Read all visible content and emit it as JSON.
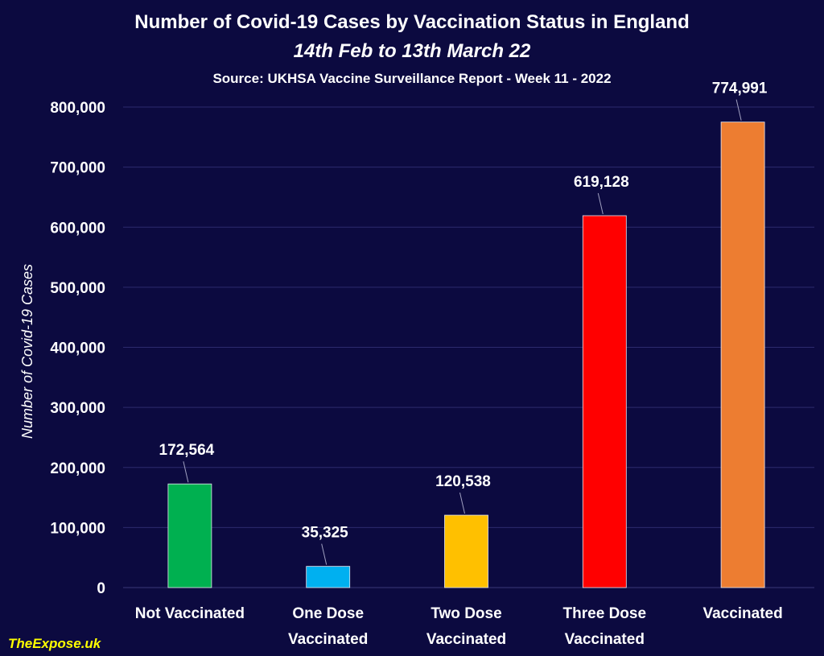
{
  "chart_data": {
    "type": "bar",
    "title": "Number of Covid-19 Cases by Vaccination Status in England",
    "subtitle": "14th Feb to 13th March 22",
    "source": "Source: UKHSA Vaccine Surveillance Report - Week 11 - 2022",
    "ylabel": "Number of Covid-19 Cases",
    "xlabel": "",
    "ylim": [
      0,
      800000
    ],
    "yticks": [
      0,
      100000,
      200000,
      300000,
      400000,
      500000,
      600000,
      700000,
      800000
    ],
    "ytick_labels": [
      "0",
      "100,000",
      "200,000",
      "300,000",
      "400,000",
      "500,000",
      "600,000",
      "700,000",
      "800,000"
    ],
    "grid": true,
    "categories": [
      [
        "Not Vaccinated"
      ],
      [
        "One Dose",
        "Vaccinated"
      ],
      [
        "Two Dose",
        "Vaccinated"
      ],
      [
        "Three Dose",
        "Vaccinated"
      ],
      [
        "Vaccinated"
      ]
    ],
    "values": [
      172564,
      35325,
      120538,
      619128,
      774991
    ],
    "value_labels": [
      "172,564",
      "35,325",
      "120,538",
      "619,128",
      "774,991"
    ],
    "colors": [
      "#00b050",
      "#00b0f0",
      "#ffc000",
      "#ff0000",
      "#ed7d31"
    ]
  },
  "watermark": "TheExpose.uk",
  "colors": {
    "background": "#0c0a40",
    "gridline": "#2c2a6e",
    "text": "#ffffff",
    "watermark": "#ffff00"
  }
}
